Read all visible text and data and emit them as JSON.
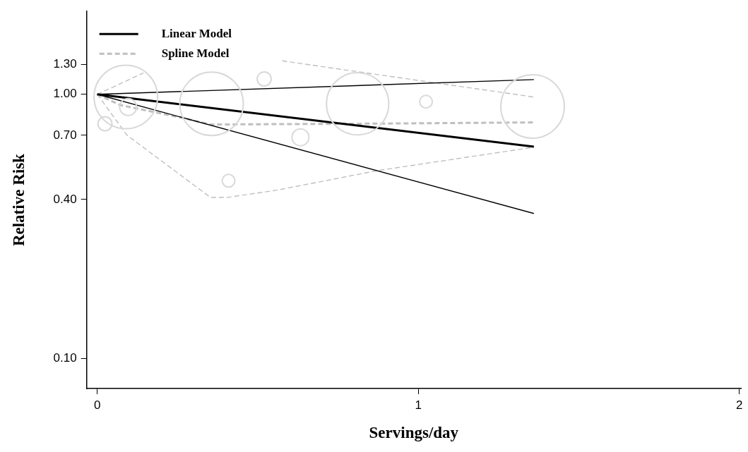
{
  "chart_data": {
    "type": "line",
    "xlabel": "Servings/day",
    "ylabel": "Relative Risk",
    "log": "y",
    "grid": false,
    "legend": "top left",
    "xlim": [
      -0.033,
      2.005
    ],
    "xticks": [
      0,
      1,
      2
    ],
    "ylim": [
      0.077,
      2.06
    ],
    "yticks": [
      {
        "value": 0.1,
        "label": "0.10"
      },
      {
        "value": 0.4,
        "label": "0.40"
      },
      {
        "value": 0.7,
        "label": "0.70"
      },
      {
        "value": 1,
        "label": "1.00"
      },
      {
        "value": 1.3,
        "label": "1.30"
      }
    ],
    "series": [
      {
        "type": "bubble",
        "color": "#d9d9d9",
        "x": [
          0.089,
          0.096,
          0.024,
          0.356,
          0.52,
          0.633,
          0.409,
          0.811,
          1.024,
          1.356
        ],
        "values": [
          0.977,
          0.895,
          0.774,
          0.921,
          1.144,
          0.688,
          0.471,
          0.921,
          0.938,
          0.9
        ],
        "sizes": [
          1,
          0.071,
          0.049,
          1,
          0.049,
          0.071,
          0.04,
          0.96,
          0.04,
          1
        ]
      },
      {
        "name": "Linear Model",
        "color": "#000000",
        "line_style": "solid",
        "x": [
          0,
          1.36
        ],
        "values": [
          1,
          0.634
        ]
      },
      {
        "color": "#000000",
        "line_style": "solid",
        "x": [
          0,
          1.36
        ],
        "values": [
          1,
          1.137
        ]
      },
      {
        "color": "#000000",
        "line_style": "solid",
        "x": [
          0,
          1.36
        ],
        "values": [
          1,
          0.354
        ]
      },
      {
        "name": "Spline Model",
        "color": "#bfbfbf",
        "line_style": "dashed",
        "x": [
          0,
          0.071,
          0.264,
          0.353,
          0.8,
          1.36
        ],
        "values": [
          1,
          0.911,
          0.815,
          0.769,
          0.774,
          0.783
        ]
      },
      {
        "color": "#bfbfbf",
        "line_style": "dashed",
        "x": [
          0,
          0.144,
          0.3,
          0.576,
          1.36
        ],
        "values": [
          1,
          1.205,
          null,
          1.339,
          0.977
        ]
      },
      {
        "color": "#bfbfbf",
        "line_style": "dashed",
        "x": [
          0,
          0.093,
          0.353,
          0.404,
          0.56,
          0.871,
          1.36
        ],
        "values": [
          1,
          0.7,
          0.407,
          0.407,
          0.434,
          0.514,
          0.631
        ]
      }
    ]
  }
}
